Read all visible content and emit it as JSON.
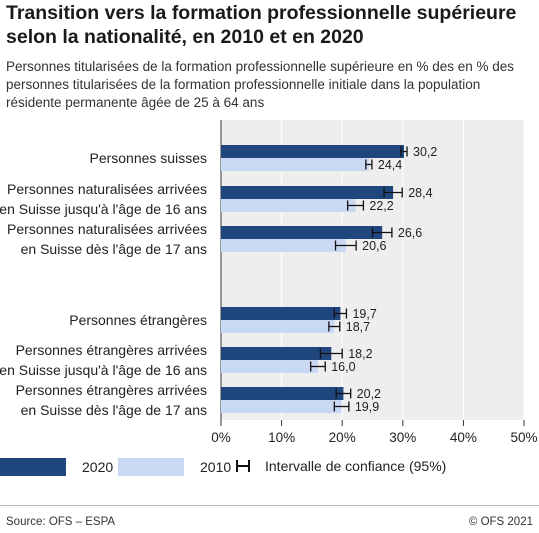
{
  "title": "Transition vers la formation professionnelle supérieure selon la nationalité, en 2010 et en 2020",
  "subtitle": "Personnes titularisées de la formation professionnelle supérieure en % des en % des personnes titularisées de la formation professionnelle initiale dans la population résidente permanente âgée de 25 à 64 ans",
  "legend": {
    "label_2020": "2020",
    "label_2010": "2010",
    "label_ci": "Intervalle de confiance (95%)"
  },
  "footer": {
    "source": "Source: OFS – ESPA",
    "copyright": "© OFS 2021"
  },
  "colors": {
    "series_2020": "#1f477d",
    "series_2010": "#c9d9f3",
    "plot_bg": "#eeeeee",
    "grid": "#ffffff"
  },
  "chart_data": {
    "type": "bar",
    "orientation": "horizontal",
    "categories": [
      [
        "Personnes suisses"
      ],
      [
        "Personnes naturalisées arrivées",
        "en Suisse jusqu'à l'âge de 16 ans"
      ],
      [
        "Personnes naturalisées arrivées",
        "en Suisse dès l'âge de 17 ans"
      ],
      [
        "Personnes étrangères"
      ],
      [
        "Personnes étrangères arrivées",
        "en Suisse jusqu'à l'âge de 16 ans"
      ],
      [
        "Personnes étrangères arrivées",
        "en Suisse dès l'âge de 17 ans"
      ]
    ],
    "series": [
      {
        "name": "2020",
        "values": [
          30.2,
          28.4,
          26.6,
          19.7,
          18.2,
          20.2
        ],
        "labels": [
          "30,2",
          "28,4",
          "26,6",
          "19,7",
          "18,2",
          "20,2"
        ],
        "ci": [
          [
            29.7,
            30.7
          ],
          [
            26.9,
            29.9
          ],
          [
            25.0,
            28.2
          ],
          [
            18.7,
            20.7
          ],
          [
            16.4,
            20.0
          ],
          [
            19.0,
            21.4
          ]
        ]
      },
      {
        "name": "2010",
        "values": [
          24.4,
          22.2,
          20.6,
          18.7,
          16.0,
          19.9
        ],
        "labels": [
          "24,4",
          "22,2",
          "20,6",
          "18,7",
          "16,0",
          "19,9"
        ],
        "ci": [
          [
            23.9,
            24.9
          ],
          [
            20.9,
            23.5
          ],
          [
            18.9,
            22.3
          ],
          [
            17.8,
            19.6
          ],
          [
            14.8,
            17.2
          ],
          [
            18.7,
            21.1
          ]
        ]
      }
    ],
    "xlim": [
      0,
      50
    ],
    "xticks": [
      "0%",
      "10%",
      "20%",
      "30%",
      "40%",
      "50%"
    ],
    "grid": true,
    "legend_position": "bottom"
  }
}
